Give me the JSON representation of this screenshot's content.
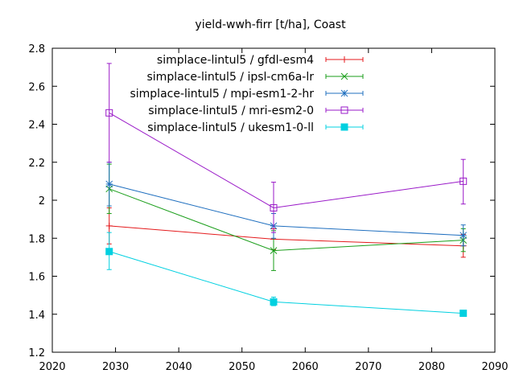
{
  "chart_data": {
    "type": "line",
    "title": "yield-wwh-firr [t/ha], Coast",
    "xlabel": "",
    "ylabel": "",
    "xlim": [
      2020,
      2090
    ],
    "ylim": [
      1.2,
      2.8
    ],
    "xticks": [
      2020,
      2030,
      2040,
      2050,
      2060,
      2070,
      2080,
      2090
    ],
    "yticks": [
      1.2,
      1.4,
      1.6,
      1.8,
      2.0,
      2.2,
      2.4,
      2.6,
      2.8
    ],
    "ytick_labels": [
      "1.2",
      "1.4",
      "1.6",
      "1.8",
      "2",
      "2.2",
      "2.4",
      "2.6",
      "2.8"
    ],
    "grid": false,
    "legend_position": "top-right",
    "x": [
      2029,
      2055,
      2085
    ],
    "series": [
      {
        "name": "simplace-lintul5 / gfdl-esm4",
        "color": "#e41a1c",
        "marker": "plus",
        "values": [
          1.865,
          1.795,
          1.76
        ],
        "err_low": [
          1.77,
          1.74,
          1.7
        ],
        "err_high": [
          1.96,
          1.85,
          1.82
        ]
      },
      {
        "name": "simplace-lintul5 / ipsl-cm6a-lr",
        "color": "#1a9e1a",
        "marker": "cross",
        "values": [
          2.06,
          1.735,
          1.79
        ],
        "err_low": [
          1.93,
          1.63,
          1.73
        ],
        "err_high": [
          2.19,
          1.84,
          1.85
        ]
      },
      {
        "name": "simplace-lintul5 / mpi-esm1-2-hr",
        "color": "#1f6fbf",
        "marker": "star",
        "values": [
          2.085,
          1.865,
          1.815
        ],
        "err_low": [
          1.97,
          1.8,
          1.76
        ],
        "err_high": [
          2.2,
          1.93,
          1.87
        ]
      },
      {
        "name": "simplace-lintul5 / mri-esm2-0",
        "color": "#9a1ac8",
        "marker": "square-open",
        "values": [
          2.46,
          1.96,
          2.1
        ],
        "err_low": [
          2.2,
          1.83,
          1.98
        ],
        "err_high": [
          2.72,
          2.095,
          2.215
        ]
      },
      {
        "name": "simplace-lintul5 / ukesm1-0-ll",
        "color": "#00d0e0",
        "marker": "square-filled",
        "values": [
          1.73,
          1.465,
          1.405
        ],
        "err_low": [
          1.635,
          1.445,
          1.39
        ],
        "err_high": [
          1.83,
          1.49,
          1.42
        ]
      }
    ]
  }
}
